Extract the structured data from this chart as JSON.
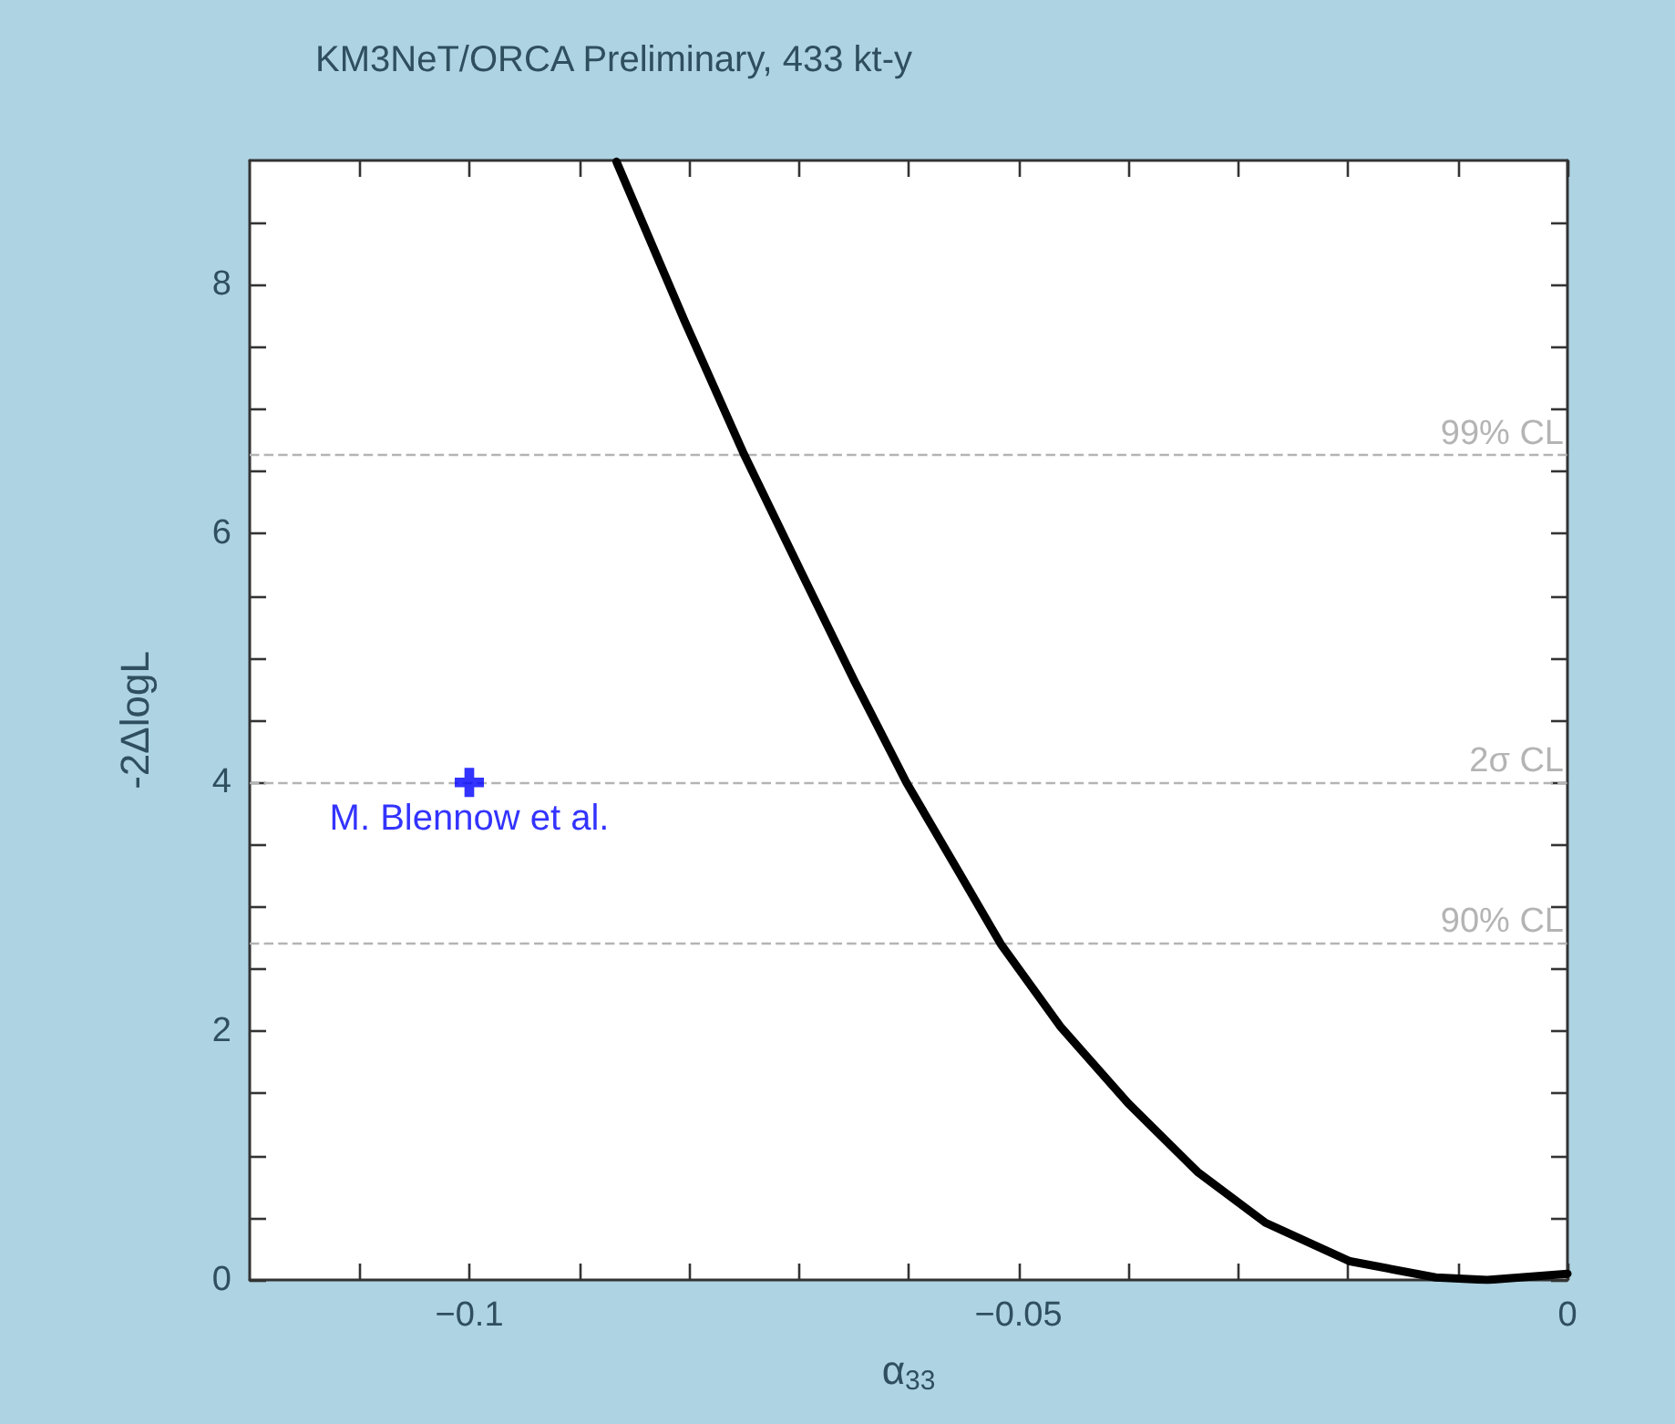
{
  "chart_data": {
    "type": "line",
    "title": "KM3NeT/ORCA Preliminary, 433 kt-y",
    "xlabel": "α$_{33}$",
    "ylabel": "-2ΔlogL",
    "xlim": [
      -0.12,
      0
    ],
    "ylim": [
      0,
      9
    ],
    "xticks": [
      {
        "value": -0.11,
        "label": null
      },
      {
        "value": -0.1,
        "label": "−0.1"
      },
      {
        "value": -0.09,
        "label": null
      },
      {
        "value": -0.08,
        "label": null
      },
      {
        "value": -0.07,
        "label": null
      },
      {
        "value": -0.06,
        "label": null
      },
      {
        "value": -0.05,
        "label": "−0.05"
      },
      {
        "value": -0.04,
        "label": null
      },
      {
        "value": -0.03,
        "label": null
      },
      {
        "value": -0.02,
        "label": null
      },
      {
        "value": -0.01,
        "label": null
      },
      0
    ],
    "yticks": [
      0,
      {
        "value": 0.5,
        "label": null
      },
      {
        "value": 1,
        "label": null
      },
      {
        "value": 1.5,
        "label": null
      },
      2,
      {
        "value": 2.5,
        "label": null
      },
      {
        "value": 3,
        "label": null
      },
      {
        "value": 3.5,
        "label": null
      },
      4,
      {
        "value": 4.5,
        "label": null
      },
      {
        "value": 5,
        "label": null
      },
      {
        "value": 5.5,
        "label": null
      },
      6,
      {
        "value": 6.5,
        "label": null
      },
      {
        "value": 7,
        "label": null
      },
      {
        "value": 7.5,
        "label": null
      },
      8,
      {
        "value": 8.5,
        "label": null
      }
    ],
    "grid": false,
    "legend": false,
    "marker": "none",
    "line_style": "solid",
    "series": [
      {
        "color": "#000000",
        "x": [
          -0.0866,
          -0.0804,
          -0.075,
          -0.0695,
          -0.0649,
          -0.0602,
          -0.0555,
          -0.0516,
          -0.0462,
          -0.04,
          -0.0337,
          -0.0275,
          -0.0198,
          -0.012,
          -0.0073,
          0
        ],
        "values": [
          8.99,
          7.71,
          6.64,
          5.64,
          4.81,
          4.0,
          3.29,
          2.7,
          2.04,
          1.42,
          0.87,
          0.46,
          0.15,
          0.02,
          0,
          0.05
        ]
      },
      {
        "type": "scatter",
        "name": "M. Blennow et al.",
        "color": "#0000ff",
        "marker": "cross",
        "x": [
          -0.1
        ],
        "values": [
          4
        ]
      }
    ],
    "ref_lines": [
      {
        "axis": "y",
        "value": 6.63,
        "label": "99% CL",
        "color": "#b4b4b4",
        "line_style": "dashed"
      },
      {
        "axis": "y",
        "value": 4,
        "label": "2σ CL",
        "color": "#b4b4b4",
        "line_style": "dashed"
      },
      {
        "axis": "y",
        "value": 2.71,
        "label": "90% CL",
        "color": "#b4b4b4",
        "line_style": "dashed"
      }
    ]
  }
}
